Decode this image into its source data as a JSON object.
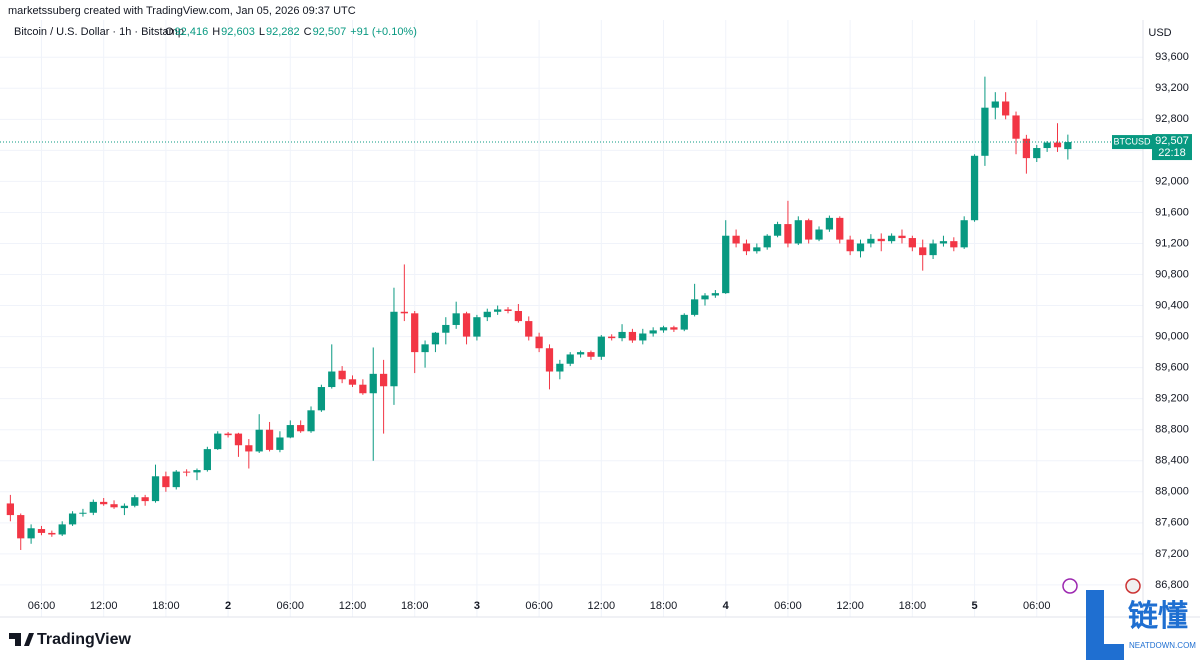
{
  "chart_data": {
    "type": "candlestick",
    "attribution": "marketssuberg created with TradingView.com, Jan 05, 2026 09:37 UTC",
    "symbol": "Bitcoin / U.S. Dollar · 1h · Bitstamp",
    "legend": [
      {
        "label": "O",
        "value": "92,416"
      },
      {
        "label": "H",
        "value": "92,603"
      },
      {
        "label": "L",
        "value": "92,282"
      },
      {
        "label": "C",
        "value": "92,507"
      }
    ],
    "change": "+91 (+0.10%)",
    "currency": "USD",
    "up_color": "#089981",
    "down_color": "#f23645",
    "grid": true,
    "ohlc": [
      [
        87850,
        87960,
        87620,
        87700
      ],
      [
        87700,
        87720,
        87250,
        87400
      ],
      [
        87400,
        87580,
        87330,
        87530
      ],
      [
        87520,
        87560,
        87440,
        87470
      ],
      [
        87470,
        87500,
        87420,
        87450
      ],
      [
        87450,
        87620,
        87430,
        87580
      ],
      [
        87580,
        87750,
        87560,
        87720
      ],
      [
        87720,
        87780,
        87680,
        87730
      ],
      [
        87730,
        87900,
        87700,
        87870
      ],
      [
        87870,
        87920,
        87820,
        87840
      ],
      [
        87840,
        87890,
        87780,
        87800
      ],
      [
        87790,
        87850,
        87700,
        87820
      ],
      [
        87820,
        87960,
        87800,
        87930
      ],
      [
        87930,
        87960,
        87820,
        87880
      ],
      [
        87880,
        88350,
        87860,
        88200
      ],
      [
        88200,
        88260,
        88000,
        88060
      ],
      [
        88060,
        88280,
        88030,
        88260
      ],
      [
        88260,
        88290,
        88200,
        88250
      ],
      [
        88250,
        88300,
        88150,
        88280
      ],
      [
        88280,
        88580,
        88260,
        88550
      ],
      [
        88550,
        88780,
        88540,
        88750
      ],
      [
        88750,
        88770,
        88700,
        88730
      ],
      [
        88750,
        88760,
        88450,
        88600
      ],
      [
        88600,
        88680,
        88300,
        88520
      ],
      [
        88520,
        89000,
        88500,
        88800
      ],
      [
        88800,
        88900,
        88520,
        88540
      ],
      [
        88540,
        88780,
        88510,
        88700
      ],
      [
        88700,
        88920,
        88690,
        88860
      ],
      [
        88860,
        88920,
        88760,
        88780
      ],
      [
        88780,
        89100,
        88760,
        89050
      ],
      [
        89050,
        89380,
        89030,
        89350
      ],
      [
        89350,
        89900,
        89330,
        89550
      ],
      [
        89560,
        89620,
        89400,
        89450
      ],
      [
        89450,
        89500,
        89350,
        89380
      ],
      [
        89380,
        89450,
        89250,
        89270
      ],
      [
        89270,
        89860,
        88400,
        89520
      ],
      [
        89520,
        89700,
        88750,
        89360
      ],
      [
        89360,
        90630,
        89120,
        90320
      ],
      [
        90320,
        90930,
        90200,
        90300
      ],
      [
        90300,
        90330,
        89530,
        89800
      ],
      [
        89800,
        89950,
        89600,
        89900
      ],
      [
        89900,
        90060,
        89800,
        90050
      ],
      [
        90050,
        90250,
        89900,
        90150
      ],
      [
        90150,
        90450,
        90100,
        90300
      ],
      [
        90300,
        90320,
        89900,
        90000
      ],
      [
        90000,
        90280,
        89950,
        90250
      ],
      [
        90250,
        90360,
        90200,
        90320
      ],
      [
        90320,
        90400,
        90280,
        90350
      ],
      [
        90350,
        90380,
        90300,
        90330
      ],
      [
        90330,
        90420,
        90180,
        90200
      ],
      [
        90200,
        90260,
        89950,
        90000
      ],
      [
        90000,
        90050,
        89800,
        89850
      ],
      [
        89850,
        89900,
        89320,
        89550
      ],
      [
        89550,
        89700,
        89450,
        89650
      ],
      [
        89650,
        89800,
        89620,
        89770
      ],
      [
        89770,
        89820,
        89730,
        89800
      ],
      [
        89800,
        89820,
        89700,
        89740
      ],
      [
        89740,
        90020,
        89700,
        90000
      ],
      [
        90000,
        90030,
        89950,
        89980
      ],
      [
        89980,
        90160,
        89940,
        90060
      ],
      [
        90060,
        90100,
        89920,
        89950
      ],
      [
        89950,
        90100,
        89900,
        90040
      ],
      [
        90040,
        90120,
        90000,
        90080
      ],
      [
        90080,
        90140,
        90050,
        90120
      ],
      [
        90120,
        90140,
        90060,
        90090
      ],
      [
        90090,
        90300,
        90070,
        90280
      ],
      [
        90280,
        90680,
        90260,
        90480
      ],
      [
        90480,
        90560,
        90400,
        90530
      ],
      [
        90530,
        90600,
        90500,
        90560
      ],
      [
        90560,
        91500,
        90550,
        91300
      ],
      [
        91300,
        91380,
        91150,
        91200
      ],
      [
        91200,
        91250,
        91050,
        91100
      ],
      [
        91100,
        91200,
        91070,
        91150
      ],
      [
        91150,
        91320,
        91120,
        91300
      ],
      [
        91300,
        91480,
        91280,
        91450
      ],
      [
        91450,
        91750,
        91150,
        91200
      ],
      [
        91200,
        91550,
        91180,
        91500
      ],
      [
        91500,
        91520,
        91200,
        91250
      ],
      [
        91250,
        91420,
        91230,
        91380
      ],
      [
        91380,
        91560,
        91350,
        91530
      ],
      [
        91530,
        91550,
        91200,
        91250
      ],
      [
        91250,
        91300,
        91050,
        91100
      ],
      [
        91100,
        91250,
        91020,
        91200
      ],
      [
        91200,
        91320,
        91150,
        91260
      ],
      [
        91260,
        91330,
        91100,
        91230
      ],
      [
        91230,
        91330,
        91200,
        91300
      ],
      [
        91300,
        91380,
        91200,
        91270
      ],
      [
        91270,
        91300,
        91100,
        91150
      ],
      [
        91150,
        91250,
        90850,
        91050
      ],
      [
        91050,
        91250,
        91000,
        91200
      ],
      [
        91200,
        91300,
        91160,
        91230
      ],
      [
        91230,
        91280,
        91100,
        91150
      ],
      [
        91150,
        91550,
        91130,
        91500
      ],
      [
        91500,
        92350,
        91480,
        92330
      ],
      [
        92330,
        93350,
        92200,
        92950
      ],
      [
        92950,
        93150,
        92800,
        93030
      ],
      [
        93030,
        93150,
        92800,
        92850
      ],
      [
        92850,
        92900,
        92350,
        92550
      ],
      [
        92550,
        92600,
        92100,
        92300
      ],
      [
        92300,
        92470,
        92250,
        92430
      ],
      [
        92430,
        92520,
        92380,
        92500
      ],
      [
        92500,
        92750,
        92380,
        92440
      ],
      [
        92416,
        92603,
        92282,
        92507
      ]
    ],
    "xlim": [
      -1,
      105.1
    ],
    "xticks": [
      {
        "value": 3,
        "label": "06:00"
      },
      {
        "value": 9,
        "label": "12:00"
      },
      {
        "value": 15,
        "label": "18:00"
      },
      {
        "value": 21,
        "label": "2"
      },
      {
        "value": 27,
        "label": "06:00"
      },
      {
        "value": 33,
        "label": "12:00"
      },
      {
        "value": 39,
        "label": "18:00"
      },
      {
        "value": 45,
        "label": "3"
      },
      {
        "value": 51,
        "label": "06:00"
      },
      {
        "value": 57,
        "label": "12:00"
      },
      {
        "value": 63,
        "label": "18:00"
      },
      {
        "value": 69,
        "label": "4"
      },
      {
        "value": 75,
        "label": "06:00"
      },
      {
        "value": 81,
        "label": "12:00"
      },
      {
        "value": 87,
        "label": "18:00"
      },
      {
        "value": 93,
        "label": "5"
      },
      {
        "value": 99,
        "label": "06:00"
      }
    ],
    "ylim": [
      86670,
      94080
    ],
    "yticks": [
      {
        "value": 86800,
        "label": "86,800"
      },
      {
        "value": 87200,
        "label": "87,200"
      },
      {
        "value": 87600,
        "label": "87,600"
      },
      {
        "value": 88000,
        "label": "88,000"
      },
      {
        "value": 88400,
        "label": "88,400"
      },
      {
        "value": 88800,
        "label": "88,800"
      },
      {
        "value": 89200,
        "label": "89,200"
      },
      {
        "value": 89600,
        "label": "89,600"
      },
      {
        "value": 90000,
        "label": "90,000"
      },
      {
        "value": 90400,
        "label": "90,400"
      },
      {
        "value": 90800,
        "label": "90,800"
      },
      {
        "value": 91200,
        "label": "91,200"
      },
      {
        "value": 91600,
        "label": "91,600"
      },
      {
        "value": 92000,
        "label": "92,000"
      },
      {
        "value": 92400,
        "label": "92,400"
      },
      {
        "value": 92800,
        "label": "92,800"
      },
      {
        "value": 93200,
        "label": "93,200"
      },
      {
        "value": 93600,
        "label": "93,600"
      }
    ],
    "last_price": {
      "value": 92507,
      "label": "92,507",
      "symbol": "BTCUSD",
      "countdown": "22:18"
    },
    "logo": "TradingView",
    "watermark": {
      "mark": "链懂",
      "site": "NEATDOWN.COM"
    }
  }
}
